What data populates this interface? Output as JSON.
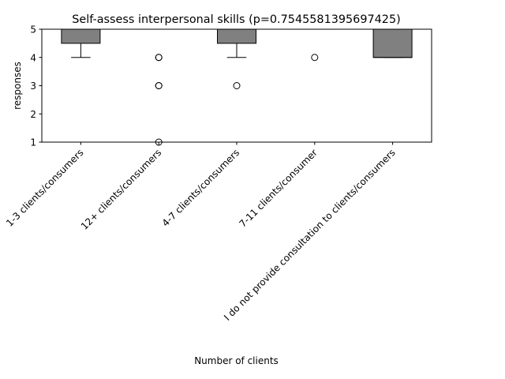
{
  "chart_data": {
    "type": "box",
    "title": "Self-assess interpersonal skills (p=0.7545581395697425)",
    "xlabel": "Number of clients",
    "ylabel": "responses",
    "ylim": [
      1,
      5
    ],
    "yticks": [
      1,
      2,
      3,
      4,
      5
    ],
    "grid": false,
    "box_color": "#808080",
    "categories": [
      "1-3 clients/consumers",
      "12+ clients/consumers",
      "4-7 clients/consumers",
      "7-11 clients/consumer",
      "I do not provide consultation to clients/consumers"
    ],
    "boxes": [
      {
        "q1": 4.5,
        "median": 5,
        "q3": 5,
        "whisker_low": 4,
        "whisker_high": 5,
        "outliers": []
      },
      {
        "q1": 5,
        "median": 5,
        "q3": 5,
        "whisker_low": 5,
        "whisker_high": 5,
        "outliers": [
          4,
          4,
          3,
          3,
          1
        ]
      },
      {
        "q1": 4.5,
        "median": 5,
        "q3": 5,
        "whisker_low": 4,
        "whisker_high": 5,
        "outliers": [
          3
        ]
      },
      {
        "q1": 5,
        "median": 5,
        "q3": 5,
        "whisker_low": 5,
        "whisker_high": 5,
        "outliers": [
          4
        ]
      },
      {
        "q1": 4,
        "median": 4,
        "q3": 5,
        "whisker_low": 4,
        "whisker_high": 5,
        "outliers": []
      }
    ]
  }
}
